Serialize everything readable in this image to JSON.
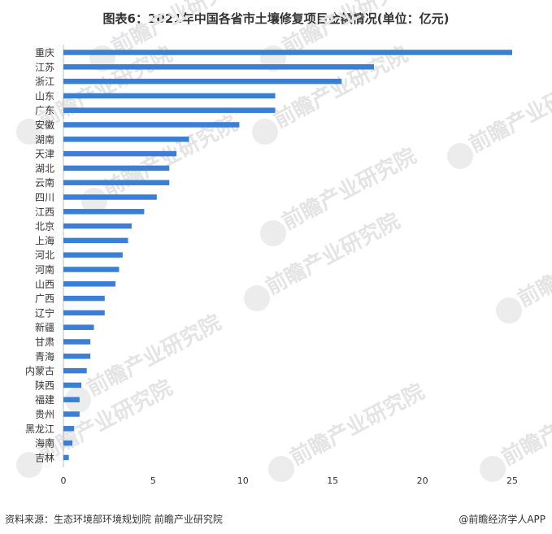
{
  "chart_data": {
    "type": "bar",
    "orientation": "horizontal",
    "title": "图表6：2021年中国各省市土壤修复项目金额情况(单位：亿元)",
    "categories": [
      "重庆",
      "江苏",
      "浙江",
      "山东",
      "广东",
      "安徽",
      "湖南",
      "天津",
      "湖北",
      "云南",
      "四川",
      "江西",
      "北京",
      "上海",
      "河北",
      "河南",
      "山西",
      "广西",
      "辽宁",
      "新疆",
      "甘肃",
      "青海",
      "内蒙古",
      "陕西",
      "福建",
      "贵州",
      "黑龙江",
      "海南",
      "吉林"
    ],
    "values": [
      25.0,
      17.3,
      15.5,
      11.8,
      11.8,
      9.8,
      7.0,
      6.3,
      5.9,
      5.9,
      5.2,
      4.5,
      3.8,
      3.6,
      3.3,
      3.1,
      2.9,
      2.3,
      2.3,
      1.7,
      1.5,
      1.5,
      1.3,
      1.0,
      0.9,
      0.9,
      0.6,
      0.5,
      0.3
    ],
    "xlim": [
      0,
      25
    ],
    "x_ticks": [
      0,
      5,
      10,
      15,
      20,
      25
    ],
    "bar_color": "#3a7fd5",
    "grid": false,
    "legend": "none"
  },
  "footer": {
    "source": "资料来源：生态环境部环境规划院 前瞻产业研究院",
    "brand": "@前瞻经济学人APP"
  },
  "watermark": {
    "text": "前瞻产业研究院"
  }
}
